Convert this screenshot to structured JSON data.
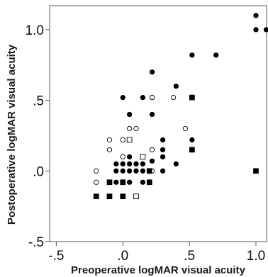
{
  "chart_data": {
    "type": "scatter",
    "xlabel": "Preoperative logMAR visual acuity",
    "ylabel": "Postoperative logMAR visual acuity",
    "xlim": [
      -0.55,
      1.08
    ],
    "ylim": [
      -0.5,
      1.17
    ],
    "x_ticks": [
      {
        "value": -0.5,
        "label": "-.5"
      },
      {
        "value": 0.0,
        "label": ".0"
      },
      {
        "value": 0.5,
        "label": ".5"
      },
      {
        "value": 1.0,
        "label": "1.0"
      }
    ],
    "y_ticks": [
      {
        "value": -0.5,
        "label": "-.5"
      },
      {
        "value": 0.0,
        "label": ".0"
      },
      {
        "value": 0.5,
        "label": ".5"
      },
      {
        "value": 1.0,
        "label": "1.0"
      }
    ],
    "grid": false,
    "legend": "none",
    "series": [
      {
        "marker": "filled-circle",
        "color": "#000000",
        "points": [
          [
            1.0,
            1.1
          ],
          [
            1.0,
            1.0
          ],
          [
            1.08,
            1.0
          ],
          [
            0.52,
            0.82
          ],
          [
            0.7,
            0.82
          ],
          [
            0.22,
            0.7
          ],
          [
            0.4,
            0.6
          ],
          [
            0.0,
            0.52
          ],
          [
            0.15,
            0.52
          ],
          [
            0.22,
            0.52
          ],
          [
            0.05,
            0.4
          ],
          [
            0.22,
            0.4
          ],
          [
            0.3,
            0.22
          ],
          [
            0.52,
            0.22
          ],
          [
            0.3,
            0.15
          ],
          [
            0.22,
            0.07
          ],
          [
            -0.05,
            0.05
          ],
          [
            0.0,
            0.05
          ],
          [
            0.05,
            0.1
          ],
          [
            0.1,
            0.05
          ],
          [
            0.15,
            0.05
          ],
          [
            0.3,
            0.1
          ],
          [
            0.4,
            0.05
          ],
          [
            -0.05,
            0.0
          ],
          [
            0.0,
            0.0
          ],
          [
            0.05,
            0.0
          ],
          [
            0.1,
            0.0
          ],
          [
            0.15,
            0.0
          ],
          [
            0.3,
            0.0
          ],
          [
            0.05,
            -0.08
          ],
          [
            0.15,
            -0.08
          ],
          [
            -0.05,
            -0.08
          ],
          [
            0.05,
            0.05
          ]
        ]
      },
      {
        "marker": "open-circle",
        "color": "#000000",
        "points": [
          [
            0.38,
            0.52
          ],
          [
            0.22,
            0.52
          ],
          [
            0.05,
            0.3
          ],
          [
            0.1,
            0.3
          ],
          [
            0.47,
            0.3
          ],
          [
            -0.1,
            0.22
          ],
          [
            0.0,
            0.22
          ],
          [
            -0.1,
            0.15
          ],
          [
            0.22,
            0.15
          ],
          [
            0.0,
            0.1
          ],
          [
            -0.2,
            0.0
          ],
          [
            0.22,
            0.0
          ],
          [
            -0.2,
            -0.08
          ]
        ]
      },
      {
        "marker": "filled-square",
        "color": "#000000",
        "points": [
          [
            0.52,
            0.52
          ],
          [
            0.52,
            0.15
          ],
          [
            0.2,
            0.0
          ],
          [
            1.0,
            0.0
          ],
          [
            -0.1,
            -0.08
          ],
          [
            0.0,
            -0.08
          ],
          [
            0.2,
            -0.08
          ],
          [
            -0.2,
            -0.18
          ],
          [
            -0.1,
            -0.18
          ],
          [
            0.0,
            -0.18
          ]
        ]
      },
      {
        "marker": "open-square",
        "color": "#000000",
        "points": [
          [
            0.05,
            0.22
          ],
          [
            0.15,
            0.1
          ],
          [
            0.1,
            -0.18
          ]
        ]
      }
    ]
  }
}
